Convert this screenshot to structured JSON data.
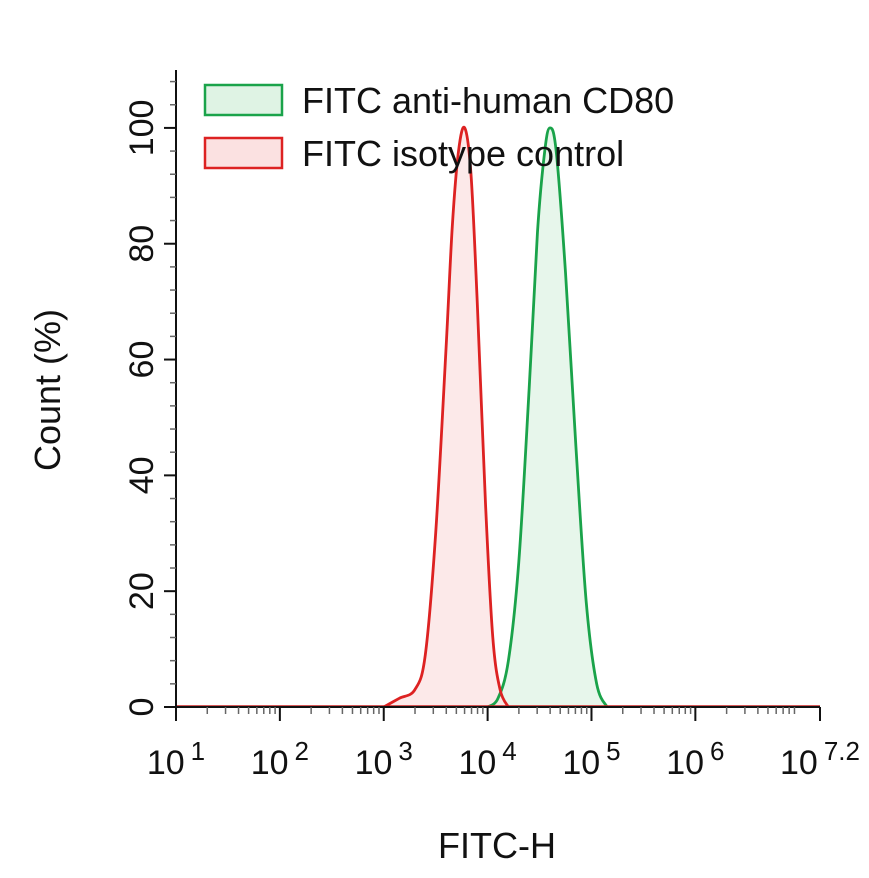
{
  "chart_data": {
    "type": "area",
    "xlabel": "FITC-H",
    "ylabel": "Count  (%)",
    "xscale": "log10",
    "xlim": [
      1,
      7.2
    ],
    "ylim": [
      0,
      110
    ],
    "y_ticks": [
      0,
      20,
      40,
      60,
      80,
      100
    ],
    "y_tick_labels": [
      "0",
      "20",
      "40",
      "60",
      "80",
      "100"
    ],
    "x_ticks": [
      {
        "value": 1,
        "base": "10",
        "exp": "1"
      },
      {
        "value": 2,
        "base": "10",
        "exp": "2"
      },
      {
        "value": 3,
        "base": "10",
        "exp": "3"
      },
      {
        "value": 4,
        "base": "10",
        "exp": "4"
      },
      {
        "value": 5,
        "base": "10",
        "exp": "5"
      },
      {
        "value": 6,
        "base": "10",
        "exp": "6"
      },
      {
        "value": 7.2,
        "base": "10",
        "exp": "7.2"
      }
    ],
    "grid": false,
    "legend_position": "top-left",
    "series": [
      {
        "name": "FITC anti-human CD80",
        "color": "#1aa34a",
        "fill": "#dff3e4",
        "points": [
          [
            4.0,
            0
          ],
          [
            4.1,
            1.5
          ],
          [
            4.2,
            8
          ],
          [
            4.3,
            25
          ],
          [
            4.4,
            55
          ],
          [
            4.48,
            82
          ],
          [
            4.55,
            96
          ],
          [
            4.6,
            100
          ],
          [
            4.66,
            96
          ],
          [
            4.75,
            75
          ],
          [
            4.85,
            45
          ],
          [
            4.95,
            18
          ],
          [
            5.05,
            4
          ],
          [
            5.15,
            0
          ]
        ]
      },
      {
        "name": "FITC isotype control",
        "color": "#dd2222",
        "fill": "#fbe1e1",
        "points": [
          [
            3.0,
            0
          ],
          [
            3.15,
            1.5
          ],
          [
            3.3,
            3
          ],
          [
            3.4,
            9
          ],
          [
            3.5,
            30
          ],
          [
            3.6,
            62
          ],
          [
            3.66,
            83
          ],
          [
            3.72,
            96
          ],
          [
            3.78,
            100
          ],
          [
            3.84,
            92
          ],
          [
            3.9,
            70
          ],
          [
            3.98,
            35
          ],
          [
            4.05,
            12
          ],
          [
            4.12,
            3
          ],
          [
            4.2,
            0
          ]
        ]
      }
    ]
  }
}
